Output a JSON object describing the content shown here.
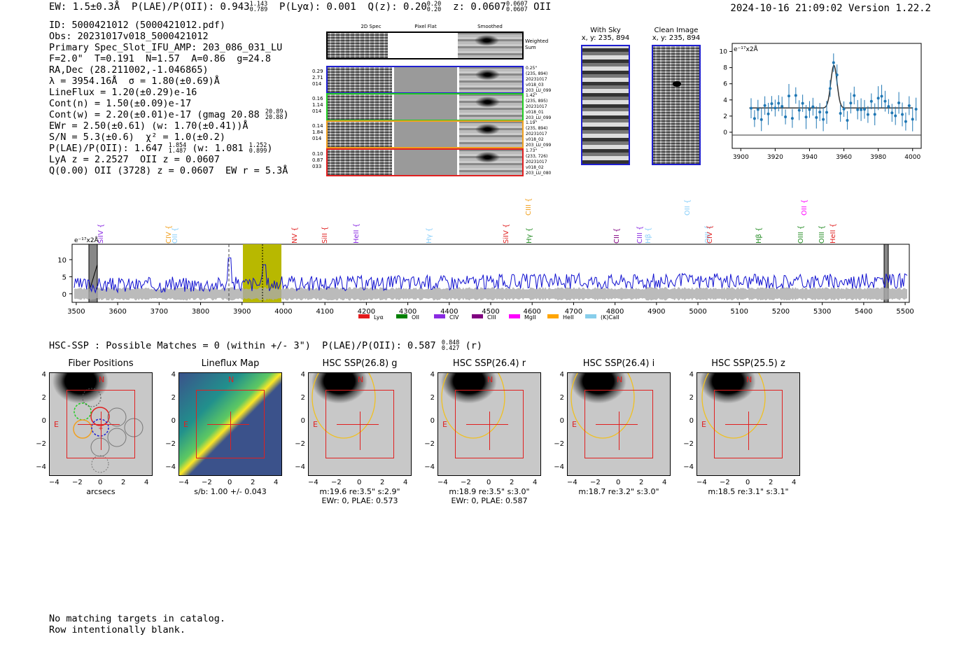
{
  "header": {
    "ew": "EW: 1.5±0.3Å",
    "plae_label": "P(LAE)/P(OII): 0.943",
    "plae_hi": "1.143",
    "plae_lo": "0.789",
    "plya": "P(Lyα): 0.001",
    "qz_label": "Q(z): 0.20",
    "qz_hi": "0.20",
    "qz_lo": "0.20",
    "z_label": "z: 0.0607",
    "z_hi": "0.0607",
    "z_lo": "0.0607",
    "line": "OII",
    "timestamp": "2024-10-16 21:09:02",
    "version": "Version 1.22.2"
  },
  "info": {
    "id": "ID: 5000421012 (5000421012.pdf)",
    "obs": "Obs: 20231017v018_5000421012",
    "primary": "Primary Spec_Slot_IFU_AMP: 203_086_031_LU",
    "fwhm": "F=2.0\"  T=0.191  N=1.57  A=0.86  g=24.8",
    "radec": "RA,Dec (28.211002,-1.046865)",
    "lambda": "λ = 3954.16Å  σ = 1.80(±0.69)Å",
    "lineflux": "LineFlux = 1.20(±0.29)e-16",
    "contn": "Cont(n) = 1.50(±0.09)e-17",
    "contw": "Cont(w) = 2.20(±0.01)e-17 (gmag 20.88",
    "gmag_hi": "20.89",
    "gmag_lo": "20.88",
    "contw_close": ")",
    "ewr": "EWr = 2.50(±0.61) (w: 1.70(±0.41))Å",
    "sn": "S/N = 5.3(±0.6)  χ² = 1.0(±0.2)",
    "plae": "P(LAE)/P(OII): 1.647",
    "plae_hi": "1.854",
    "plae_lo": "1.487",
    "plae_w": " (w: 1.081",
    "plae_w_hi": "1.252",
    "plae_w_lo": "0.899",
    "plae_w_close": ")",
    "lya": "LyA z = 2.2527  OII z = 0.0607",
    "q": "Q(0.00) OII (3728) z = 0.0607  EW r = 5.3Å"
  },
  "cutout_panel": {
    "headers": [
      "2D Spec",
      "Pixel Flat",
      "Smoothed"
    ],
    "weighted_sum": "Weighted Sum",
    "rows": [
      {
        "left": [
          "0.29",
          "2.71",
          "014"
        ],
        "right": [
          "0.25\"",
          "(235, 894)",
          "20231017",
          "v018_03",
          "203_LU_099"
        ],
        "color": "#1f1fd0"
      },
      {
        "left": [
          "0.16",
          "1.14",
          "014"
        ],
        "right": [
          "1.42\"",
          "(235, 895)",
          "20231017",
          "v018_01",
          "203_LU_099"
        ],
        "color": "#22cc22"
      },
      {
        "left": [
          "0.14",
          "1.84",
          "014"
        ],
        "right": [
          "1.19\"",
          "(235, 894)",
          "20231017",
          "v018_02",
          "203_LU_099"
        ],
        "color": "#f0a020"
      },
      {
        "left": [
          "0.10",
          "0.87",
          "033"
        ],
        "right": [
          "1.73\"",
          "(233, 726)",
          "20231017",
          "v018_02",
          "203_LU_080"
        ],
        "color": "#e02020"
      }
    ]
  },
  "sky_panels": {
    "with_sky": "With Sky",
    "with_sky_xy": "x, y: 235, 894",
    "clean": "Clean Image",
    "clean_xy": "x, y: 235, 894"
  },
  "zoom_plot": {
    "unit": "e⁻¹⁷x2Å",
    "xticks": [
      "3900",
      "3920",
      "3940",
      "3960",
      "3980",
      "4000"
    ],
    "yticks": [
      "0",
      "2",
      "4",
      "6",
      "8",
      "10"
    ]
  },
  "spectrum": {
    "unit": "e⁻¹⁷x2Å",
    "xticks": [
      "3500",
      "3600",
      "3700",
      "3800",
      "3900",
      "4000",
      "4100",
      "4200",
      "4300",
      "4400",
      "4500",
      "4600",
      "4700",
      "4800",
      "4900",
      "5000",
      "5100",
      "5200",
      "5300",
      "5400",
      "5500"
    ],
    "yticks": [
      "0",
      "5",
      "10"
    ],
    "lines": [
      {
        "label": "SiIV",
        "color": "#8a2be2"
      },
      {
        "label": "CIV",
        "color": "#f0a020"
      },
      {
        "label": "OII",
        "color": "#87cefa"
      },
      {
        "label": "NV",
        "color": "#e02020"
      },
      {
        "label": "SiII",
        "color": "#e02020"
      },
      {
        "label": "HeII",
        "color": "#8a2be2"
      },
      {
        "label": "Hγ",
        "color": "#87cefa"
      },
      {
        "label": "SiIV",
        "color": "#e02020"
      },
      {
        "label": "CIII",
        "color": "#f0a020"
      },
      {
        "label": "Hγ",
        "color": "#228b22"
      },
      {
        "label": "CII",
        "color": "#800080"
      },
      {
        "label": "CIII",
        "color": "#8a2be2"
      },
      {
        "label": "Hβ",
        "color": "#87cefa"
      },
      {
        "label": "OII",
        "color": "#87cefa"
      },
      {
        "label": "OIII",
        "color": "#87cefa"
      },
      {
        "label": "CIV",
        "color": "#e02020"
      },
      {
        "label": "Hβ",
        "color": "#228b22"
      },
      {
        "label": "OII",
        "color": "#ff00ff"
      },
      {
        "label": "OIII",
        "color": "#228b22"
      },
      {
        "label": "OIII",
        "color": "#228b22"
      },
      {
        "label": "HeII",
        "color": "#e02020"
      }
    ],
    "legend": [
      {
        "label": "Lyα",
        "color": "#e41a1c"
      },
      {
        "label": "OII",
        "color": "#008000"
      },
      {
        "label": "CIV",
        "color": "#8a2be2"
      },
      {
        "label": "CIII",
        "color": "#800080"
      },
      {
        "label": "MgII",
        "color": "#ff00ff"
      },
      {
        "label": "HeII",
        "color": "#ffa500"
      },
      {
        "label": "(K)CaII",
        "color": "#87ceeb"
      }
    ]
  },
  "hsc": {
    "title": "HSC-SSP : Possible Matches = 0 (within +/- 3\")  P(LAE)/P(OII): 0.587",
    "hi": "0.848",
    "lo": "0.427",
    "suffix": "(r)",
    "panels": [
      {
        "title": "Fiber Positions",
        "cap1": "arcsecs",
        "cap2": ""
      },
      {
        "title": "Lineflux Map",
        "cap1": "s/b: 1.00 +/- 0.043",
        "cap2": ""
      },
      {
        "title": "HSC SSP(26.8) g",
        "cap1": "m:19.6  re:3.5\"  s:2.9\"",
        "cap2": "EWr: 0, PLAE: 0.573"
      },
      {
        "title": "HSC SSP(26.4) r",
        "cap1": "m:18.9  re:3.5\"  s:3.0\"",
        "cap2": "EWr: 0, PLAE: 0.587"
      },
      {
        "title": "HSC SSP(26.4) i",
        "cap1": "m:18.7  re:3.2\"  s:3.0\"",
        "cap2": ""
      },
      {
        "title": "HSC SSP(25.5) z",
        "cap1": "m:18.5  re:3.1\"  s:3.1\"",
        "cap2": ""
      }
    ],
    "ticks": [
      "−4",
      "−2",
      "0",
      "2",
      "4"
    ],
    "north": "N",
    "east": "E"
  },
  "footer": {
    "line1": "No matching targets in catalog.",
    "line2": "Row intentionally blank."
  }
}
